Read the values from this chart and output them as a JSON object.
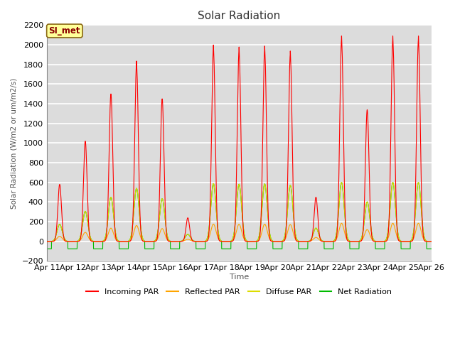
{
  "title": "Solar Radiation",
  "ylabel": "Solar Radiation (W/m2 or um/m2/s)",
  "xlabel": "Time",
  "ylim": [
    -200,
    2200
  ],
  "yticks": [
    -200,
    0,
    200,
    400,
    600,
    800,
    1000,
    1200,
    1400,
    1600,
    1800,
    2000,
    2200
  ],
  "x_tick_labels": [
    "Apr 11",
    "Apr 12",
    "Apr 13",
    "Apr 14",
    "Apr 15",
    "Apr 16",
    "Apr 17",
    "Apr 18",
    "Apr 19",
    "Apr 20",
    "Apr 21",
    "Apr 22",
    "Apr 23",
    "Apr 24",
    "Apr 25",
    "Apr 26"
  ],
  "annotation_label": "SI_met",
  "annotation_box_color": "#FFFF99",
  "annotation_box_edgecolor": "#8B6914",
  "annotation_text_color": "#8B0000",
  "colors": {
    "incoming": "#FF0000",
    "reflected": "#FFA500",
    "diffuse": "#DDDD00",
    "net": "#00BB00"
  },
  "legend_labels": [
    "Incoming PAR",
    "Reflected PAR",
    "Diffuse PAR",
    "Net Radiation"
  ],
  "plot_bg": "#DCDCDC",
  "fig_bg": "#FFFFFF",
  "grid_color": "#FFFFFF",
  "n_days": 15,
  "points_per_day": 480,
  "incoming_peaks": [
    580,
    1020,
    1500,
    1800,
    1450,
    240,
    1960,
    1940,
    1950,
    1900,
    450,
    2050,
    1340,
    2050,
    2050
  ],
  "night_neg": -75
}
